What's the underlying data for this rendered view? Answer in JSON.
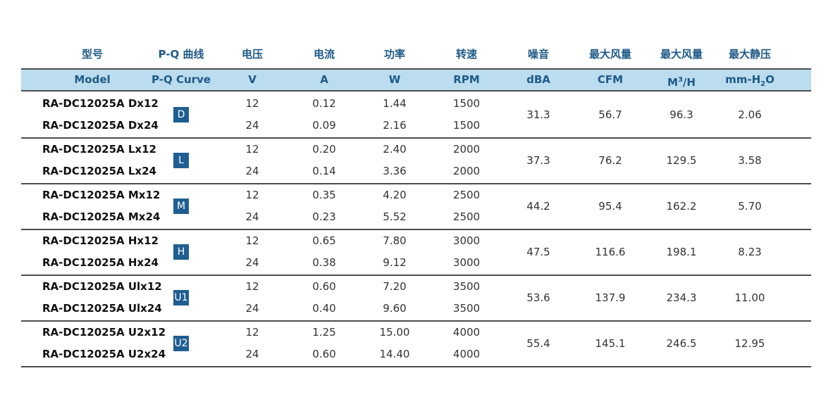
{
  "header_zh": [
    "型号",
    "P-Q 曲线",
    "电压",
    "电流",
    "功率",
    "转速",
    "噪音",
    "最大风量",
    "最大风量",
    "最大静压"
  ],
  "header_en": {
    "model": "Model",
    "pq": "P-Q Curve",
    "voltage": "V",
    "current": "A",
    "power": "W",
    "speed": "RPM",
    "noise": "dBA",
    "airflow_cfm": "CFM",
    "airflow_m3h_base": "M",
    "airflow_m3h_sup": "3",
    "airflow_m3h_unit": "/H",
    "pressure_pre": "mm-H",
    "pressure_sub": "2",
    "pressure_post": "O"
  },
  "groups": [
    {
      "curve": "D",
      "noise": "31.3",
      "cfm": "56.7",
      "m3h": "96.3",
      "pressure": "2.06",
      "rows": [
        {
          "model": "RA-DC12025A Dx12",
          "v": "12",
          "a": "0.12",
          "w": "1.44",
          "rpm": "1500"
        },
        {
          "model": "RA-DC12025A Dx24",
          "v": "24",
          "a": "0.09",
          "w": "2.16",
          "rpm": "1500"
        }
      ]
    },
    {
      "curve": "L",
      "noise": "37.3",
      "cfm": "76.2",
      "m3h": "129.5",
      "pressure": "3.58",
      "rows": [
        {
          "model": "RA-DC12025A Lx12",
          "v": "12",
          "a": "0.20",
          "w": "2.40",
          "rpm": "2000"
        },
        {
          "model": "RA-DC12025A Lx24",
          "v": "24",
          "a": "0.14",
          "w": "3.36",
          "rpm": "2000"
        }
      ]
    },
    {
      "curve": "M",
      "noise": "44.2",
      "cfm": "95.4",
      "m3h": "162.2",
      "pressure": "5.70",
      "rows": [
        {
          "model": "RA-DC12025A Mx12",
          "v": "12",
          "a": "0.35",
          "w": "4.20",
          "rpm": "2500"
        },
        {
          "model": "RA-DC12025A Mx24",
          "v": "24",
          "a": "0.23",
          "w": "5.52",
          "rpm": "2500"
        }
      ]
    },
    {
      "curve": "H",
      "noise": "47.5",
      "cfm": "116.6",
      "m3h": "198.1",
      "pressure": "8.23",
      "rows": [
        {
          "model": "RA-DC12025A Hx12",
          "v": "12",
          "a": "0.65",
          "w": "7.80",
          "rpm": "3000"
        },
        {
          "model": "RA-DC12025A Hx24",
          "v": "24",
          "a": "0.38",
          "w": "9.12",
          "rpm": "3000"
        }
      ]
    },
    {
      "curve": "U1",
      "noise": "53.6",
      "cfm": "137.9",
      "m3h": "234.3",
      "pressure": "11.00",
      "rows": [
        {
          "model": "RA-DC12025A Ulx12",
          "v": "12",
          "a": "0.60",
          "w": "7.20",
          "rpm": "3500"
        },
        {
          "model": "RA-DC12025A Ulx24",
          "v": "24",
          "a": "0.40",
          "w": "9.60",
          "rpm": "3500"
        }
      ]
    },
    {
      "curve": "U2",
      "noise": "55.4",
      "cfm": "145.1",
      "m3h": "246.5",
      "pressure": "12.95",
      "rows": [
        {
          "model": "RA-DC12025A U2x12",
          "v": "12",
          "a": "1.25",
          "w": "15.00",
          "rpm": "4000"
        },
        {
          "model": "RA-DC12025A U2x24",
          "v": "24",
          "a": "0.60",
          "w": "14.40",
          "rpm": "4000"
        }
      ]
    }
  ],
  "colors": {
    "header_text": "#1f5a87",
    "header_band": "#bcdcef",
    "badge": "#1f5e91",
    "rule": "#4d4d4d"
  }
}
